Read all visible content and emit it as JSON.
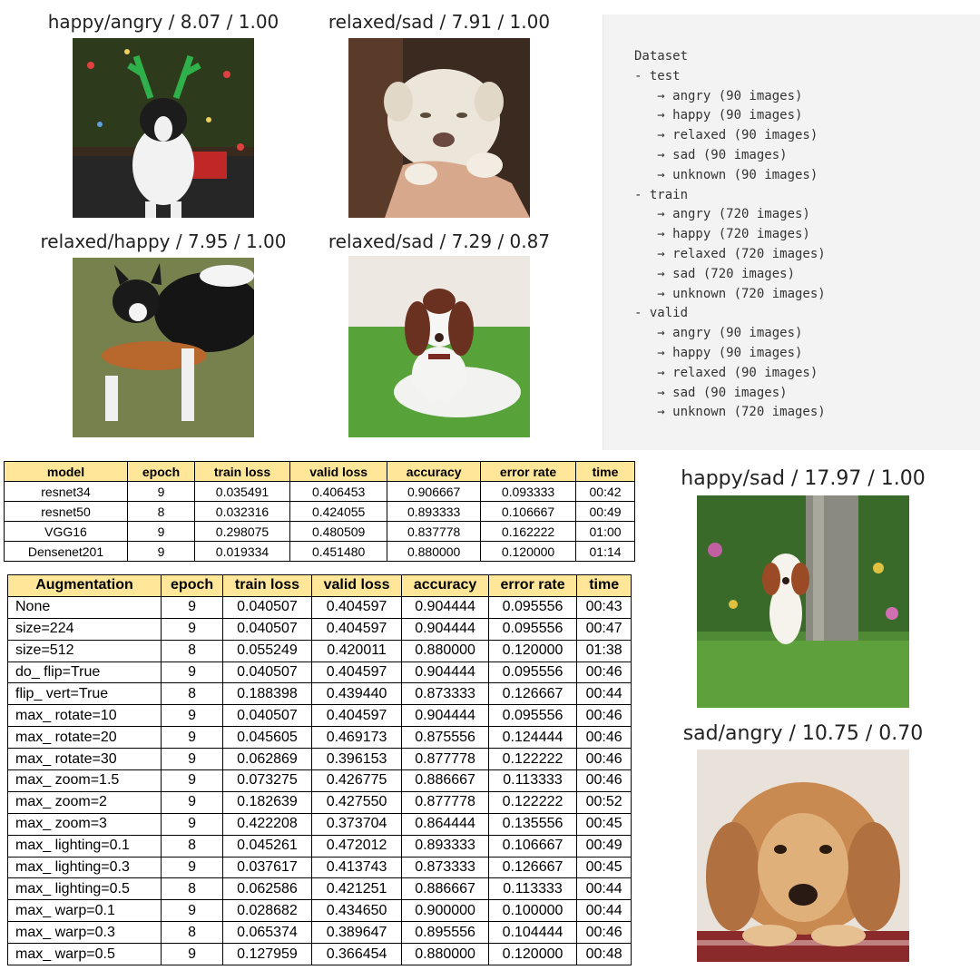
{
  "captions": {
    "p1": "happy/angry / 8.07 / 1.00",
    "p2": "relaxed/sad / 7.91 / 1.00",
    "p3": "relaxed/happy / 7.95 / 1.00",
    "p4": "relaxed/sad / 7.29 / 0.87",
    "p5": "happy/sad / 17.97 / 1.00",
    "p6": "sad/angry / 10.75 / 0.70"
  },
  "dataset_tree": [
    "Dataset",
    "- test",
    "   → angry (90 images)",
    "   → happy (90 images)",
    "   → relaxed (90 images)",
    "   → sad (90 images)",
    "   → unknown (90 images)",
    "- train",
    "   → angry (720 images)",
    "   → happy (720 images)",
    "   → relaxed (720 images)",
    "   → sad (720 images)",
    "   → unknown (720 images)",
    "- valid",
    "   → angry (90 images)",
    "   → happy (90 images)",
    "   → relaxed (90 images)",
    "   → sad (90 images)",
    "   → unknown (720 images)"
  ],
  "model_table": {
    "headers": [
      "model",
      "epoch",
      "train loss",
      "valid loss",
      "accuracy",
      "error rate",
      "time"
    ],
    "rows": [
      [
        "resnet34",
        "9",
        "0.035491",
        "0.406453",
        "0.906667",
        "0.093333",
        "00:42"
      ],
      [
        "resnet50",
        "8",
        "0.032316",
        "0.424055",
        "0.893333",
        "0.106667",
        "00:49"
      ],
      [
        "VGG16",
        "9",
        "0.298075",
        "0.480509",
        "0.837778",
        "0.162222",
        "01:00"
      ],
      [
        "Densenet201",
        "9",
        "0.019334",
        "0.451480",
        "0.880000",
        "0.120000",
        "01:14"
      ]
    ]
  },
  "augmentation_table": {
    "headers": [
      "Augmentation",
      "epoch",
      "train loss",
      "valid loss",
      "accuracy",
      "error rate",
      "time"
    ],
    "rows": [
      [
        "None",
        "9",
        "0.040507",
        "0.404597",
        "0.904444",
        "0.095556",
        "00:43"
      ],
      [
        "size=224",
        "9",
        "0.040507",
        "0.404597",
        "0.904444",
        "0.095556",
        "00:47"
      ],
      [
        "size=512",
        "8",
        "0.055249",
        "0.420011",
        "0.880000",
        "0.120000",
        "01:38"
      ],
      [
        "do_ flip=True",
        "9",
        "0.040507",
        "0.404597",
        "0.904444",
        "0.095556",
        "00:46"
      ],
      [
        "flip_ vert=True",
        "8",
        "0.188398",
        "0.439440",
        "0.873333",
        "0.126667",
        "00:44"
      ],
      [
        "max_ rotate=10",
        "9",
        "0.040507",
        "0.404597",
        "0.904444",
        "0.095556",
        "00:46"
      ],
      [
        "max_ rotate=20",
        "9",
        "0.045605",
        "0.469173",
        "0.875556",
        "0.124444",
        "00:46"
      ],
      [
        "max_ rotate=30",
        "9",
        "0.062869",
        "0.396153",
        "0.877778",
        "0.122222",
        "00:46"
      ],
      [
        "max_ zoom=1.5",
        "9",
        "0.073275",
        "0.426775",
        "0.886667",
        "0.113333",
        "00:46"
      ],
      [
        "max_ zoom=2",
        "9",
        "0.182639",
        "0.427550",
        "0.877778",
        "0.122222",
        "00:52"
      ],
      [
        "max_ zoom=3",
        "9",
        "0.422208",
        "0.373704",
        "0.864444",
        "0.135556",
        "00:45"
      ],
      [
        "max_ lighting=0.1",
        "8",
        "0.045261",
        "0.472012",
        "0.893333",
        "0.106667",
        "00:49"
      ],
      [
        "max_ lighting=0.3",
        "9",
        "0.037617",
        "0.413743",
        "0.873333",
        "0.126667",
        "00:45"
      ],
      [
        "max_ lighting=0.5",
        "8",
        "0.062586",
        "0.421251",
        "0.886667",
        "0.113333",
        "00:44"
      ],
      [
        "max_ warp=0.1",
        "9",
        "0.028682",
        "0.434650",
        "0.900000",
        "0.100000",
        "00:44"
      ],
      [
        "max_ warp=0.3",
        "8",
        "0.065374",
        "0.389647",
        "0.895556",
        "0.104444",
        "00:46"
      ],
      [
        "max_ warp=0.5",
        "9",
        "0.127959",
        "0.366454",
        "0.880000",
        "0.120000",
        "00:48"
      ]
    ]
  },
  "colors": {
    "header_fill": "#ffe699",
    "tree_panel": "#f3f3f3"
  }
}
